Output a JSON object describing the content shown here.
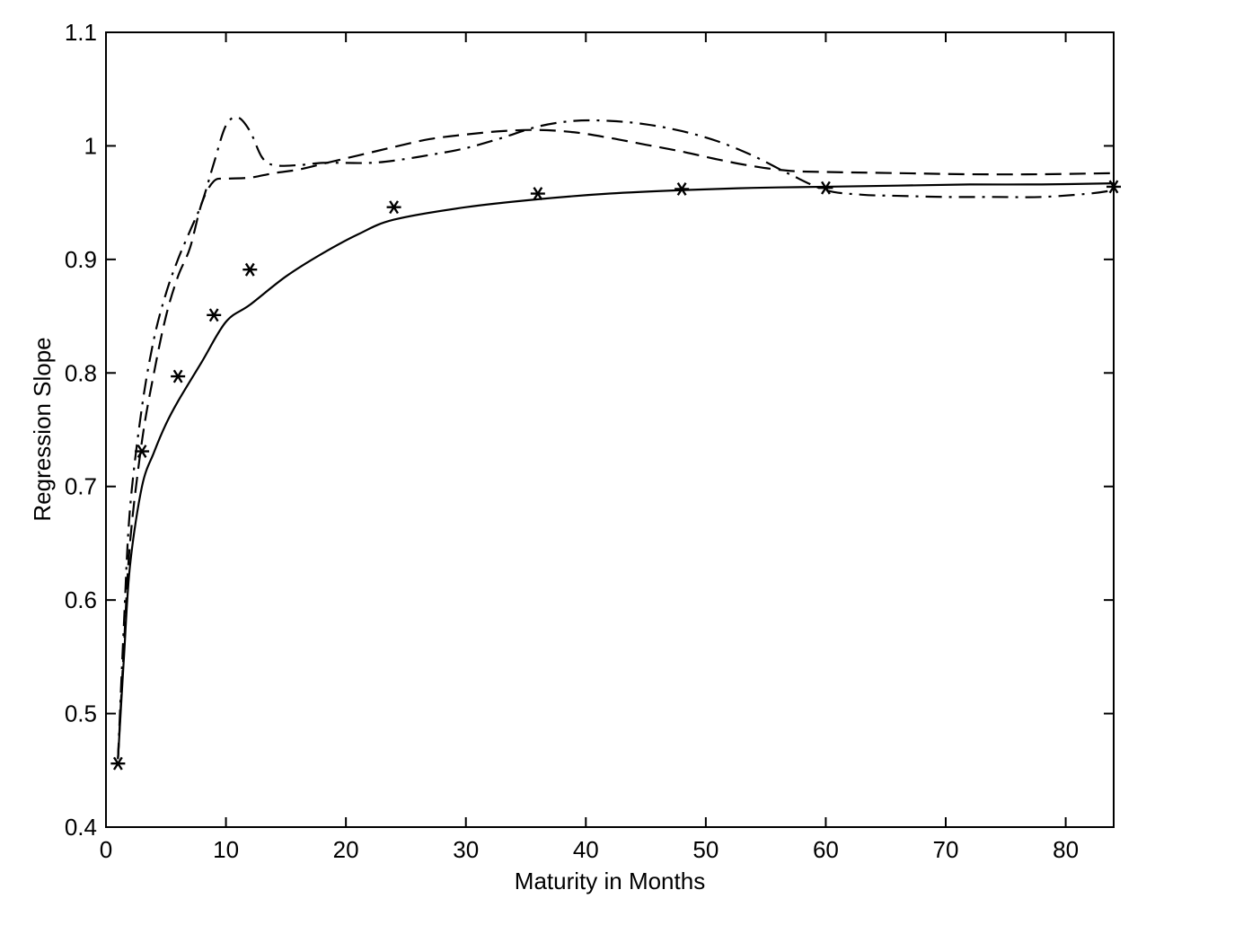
{
  "chart_data": {
    "type": "line",
    "title": "",
    "xlabel": "Maturity in Months",
    "ylabel": "Regression Slope",
    "xlim": [
      0,
      84
    ],
    "ylim": [
      0.4,
      1.1
    ],
    "xticks": [
      0,
      10,
      20,
      30,
      40,
      50,
      60,
      70,
      80
    ],
    "yticks": [
      0.4,
      0.5,
      0.6,
      0.7,
      0.8,
      0.9,
      1.0,
      1.1
    ],
    "xtick_labels": [
      "0",
      "10",
      "20",
      "30",
      "40",
      "50",
      "60",
      "70",
      "80"
    ],
    "ytick_labels": [
      "0.4",
      "0.5",
      "0.6",
      "0.7",
      "0.8",
      "0.9",
      "1",
      "1.1"
    ],
    "grid": false,
    "legend": false,
    "color": "#000000",
    "series": [
      {
        "style": "solid",
        "x": [
          1,
          1.5,
          2,
          3,
          4,
          5,
          6,
          8,
          10,
          12,
          15,
          18,
          21,
          24,
          30,
          36,
          42,
          48,
          54,
          60,
          66,
          72,
          78,
          84
        ],
        "y": [
          0.46,
          0.55,
          0.63,
          0.7,
          0.73,
          0.755,
          0.775,
          0.81,
          0.845,
          0.86,
          0.885,
          0.905,
          0.922,
          0.935,
          0.946,
          0.953,
          0.958,
          0.961,
          0.963,
          0.964,
          0.965,
          0.966,
          0.966,
          0.967
        ]
      },
      {
        "style": "dashed",
        "x": [
          1,
          1.5,
          2,
          3,
          4,
          5,
          6,
          7,
          8,
          9,
          10,
          12,
          14,
          16,
          18,
          20,
          22,
          24,
          27,
          30,
          33,
          36,
          39,
          42,
          45,
          48,
          51,
          54,
          57,
          60,
          66,
          72,
          78,
          84
        ],
        "y": [
          0.46,
          0.56,
          0.65,
          0.74,
          0.8,
          0.85,
          0.885,
          0.91,
          0.95,
          0.969,
          0.971,
          0.972,
          0.976,
          0.979,
          0.984,
          0.989,
          0.994,
          0.999,
          1.006,
          1.01,
          1.013,
          1.014,
          1.012,
          1.007,
          1.001,
          0.995,
          0.988,
          0.982,
          0.978,
          0.977,
          0.976,
          0.975,
          0.975,
          0.976
        ]
      },
      {
        "style": "dash-dot",
        "x": [
          1,
          1.5,
          2,
          3,
          4,
          5,
          6,
          7,
          8,
          9,
          10,
          11,
          12,
          13,
          14,
          16,
          18,
          20,
          22,
          24,
          27,
          30,
          33,
          36,
          39,
          42,
          45,
          48,
          51,
          54,
          57,
          60,
          63,
          66,
          70,
          74,
          78,
          82,
          84
        ],
        "y": [
          0.46,
          0.58,
          0.68,
          0.77,
          0.83,
          0.87,
          0.9,
          0.925,
          0.95,
          0.985,
          1.018,
          1.025,
          1.013,
          0.99,
          0.983,
          0.983,
          0.985,
          0.985,
          0.985,
          0.987,
          0.992,
          0.998,
          1.007,
          1.017,
          1.022,
          1.022,
          1.019,
          1.013,
          1.004,
          0.991,
          0.975,
          0.961,
          0.957,
          0.956,
          0.955,
          0.955,
          0.955,
          0.958,
          0.961
        ]
      },
      {
        "style": "markers",
        "marker": "asterisk",
        "x": [
          1,
          3,
          6,
          9,
          12,
          24,
          36,
          48,
          60,
          84
        ],
        "y": [
          0.456,
          0.731,
          0.797,
          0.851,
          0.891,
          0.946,
          0.958,
          0.962,
          0.963,
          0.964
        ]
      }
    ]
  }
}
